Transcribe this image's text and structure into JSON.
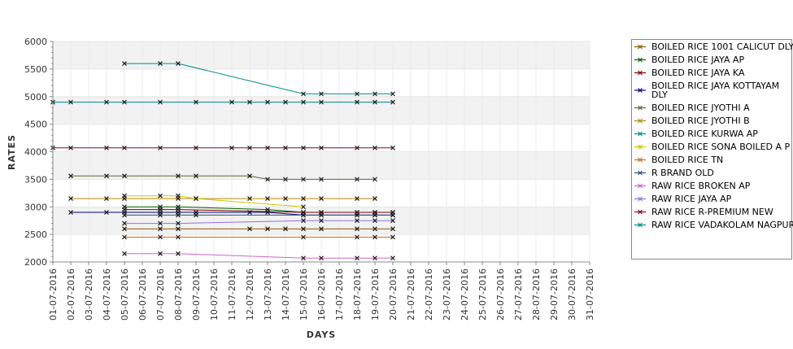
{
  "chart_data": {
    "type": "line",
    "xlabel": "DAYS",
    "ylabel": "RATES",
    "ylim": [
      2000,
      6000
    ],
    "yticks": [
      2000,
      2500,
      3000,
      3500,
      4000,
      4500,
      5000,
      5500,
      6000
    ],
    "grid": "alternating horizontal bands",
    "legend_position": "right",
    "categories": [
      "01-07-2016",
      "02-07-2016",
      "03-07-2016",
      "04-07-2016",
      "05-07-2016",
      "06-07-2016",
      "07-07-2016",
      "08-07-2016",
      "09-07-2016",
      "10-07-2016",
      "11-07-2016",
      "12-07-2016",
      "13-07-2016",
      "14-07-2016",
      "15-07-2016",
      "16-07-2016",
      "17-07-2016",
      "18-07-2016",
      "19-07-2016",
      "20-07-2016",
      "21-07-2016",
      "22-07-2016",
      "23-07-2016",
      "24-07-2016",
      "25-07-2016",
      "26-07-2016",
      "27-07-2016",
      "28-07-2016",
      "29-07-2016",
      "30-07-2016",
      "31-07-2016"
    ],
    "series": [
      {
        "name": "BOILED RICE 1001 CALICUT DLY",
        "color": "#8b5a00",
        "values": [
          null,
          null,
          null,
          null,
          2600,
          null,
          2600,
          2600,
          null,
          null,
          null,
          2600,
          2600,
          2600,
          2600,
          2600,
          null,
          2600,
          2600,
          2600,
          null,
          null,
          null,
          null,
          null,
          null,
          null,
          null,
          null,
          null,
          null
        ]
      },
      {
        "name": "BOILED RICE JAYA AP",
        "color": "#006400",
        "values": [
          null,
          null,
          null,
          null,
          3000,
          null,
          3000,
          3000,
          null,
          null,
          null,
          null,
          2950,
          null,
          2900,
          2900,
          null,
          2900,
          2900,
          2900,
          null,
          null,
          null,
          null,
          null,
          null,
          null,
          null,
          null,
          null,
          null
        ]
      },
      {
        "name": "BOILED RICE JAYA KA",
        "color": "#800000",
        "values": [
          null,
          null,
          null,
          null,
          2950,
          null,
          2950,
          2950,
          null,
          null,
          null,
          null,
          null,
          null,
          2900,
          2900,
          null,
          2900,
          2900,
          2900,
          null,
          null,
          null,
          null,
          null,
          null,
          null,
          null,
          null,
          null,
          null
        ]
      },
      {
        "name": "BOILED RICE JAYA KOTTAYAM DLY",
        "color": "#000080",
        "values": [
          null,
          2900,
          null,
          2900,
          2900,
          null,
          2900,
          2900,
          2900,
          null,
          null,
          2900,
          2900,
          null,
          2850,
          2850,
          null,
          2850,
          2850,
          2850,
          null,
          null,
          null,
          null,
          null,
          null,
          null,
          null,
          null,
          null,
          null
        ]
      },
      {
        "name": "BOILED RICE JYOTHI A",
        "color": "#556b2f",
        "values": [
          null,
          3560,
          null,
          3560,
          3560,
          null,
          null,
          3560,
          3560,
          null,
          null,
          3560,
          3500,
          3500,
          3500,
          3500,
          null,
          3500,
          3500,
          null,
          null,
          null,
          null,
          null,
          null,
          null,
          null,
          null,
          null,
          null,
          null
        ]
      },
      {
        "name": "BOILED RICE JYOTHI B",
        "color": "#b8860b",
        "values": [
          null,
          3150,
          null,
          3150,
          3150,
          null,
          null,
          3150,
          3150,
          null,
          null,
          3150,
          3150,
          3150,
          3150,
          3150,
          null,
          3150,
          3150,
          null,
          null,
          null,
          null,
          null,
          null,
          null,
          null,
          null,
          null,
          null,
          null
        ]
      },
      {
        "name": "BOILED RICE KURWA AP",
        "color": "#008b8b",
        "values": [
          null,
          null,
          null,
          null,
          5600,
          null,
          5600,
          5600,
          null,
          null,
          null,
          null,
          null,
          null,
          5050,
          5050,
          null,
          5050,
          5050,
          5050,
          null,
          null,
          null,
          null,
          null,
          null,
          null,
          null,
          null,
          null,
          null
        ]
      },
      {
        "name": "BOILED RICE SONA BOILED A P",
        "color": "#c8c800",
        "values": [
          null,
          null,
          null,
          null,
          3200,
          null,
          3200,
          3200,
          3150,
          null,
          null,
          null,
          null,
          null,
          3000,
          null,
          null,
          null,
          null,
          null,
          null,
          null,
          null,
          null,
          null,
          null,
          null,
          null,
          null,
          null,
          null
        ]
      },
      {
        "name": "BOILED RICE TN",
        "color": "#d2691e",
        "values": [
          null,
          null,
          null,
          null,
          2450,
          null,
          2450,
          2450,
          null,
          null,
          null,
          null,
          null,
          null,
          2450,
          null,
          null,
          2450,
          2450,
          2450,
          null,
          null,
          null,
          null,
          null,
          null,
          null,
          null,
          null,
          null,
          null
        ]
      },
      {
        "name": "R BRAND OLD",
        "color": "#2f4f7f",
        "values": [
          null,
          null,
          null,
          null,
          2850,
          null,
          2850,
          2850,
          2850,
          null,
          null,
          null,
          null,
          null,
          2850,
          2850,
          null,
          2850,
          2850,
          2850,
          null,
          null,
          null,
          null,
          null,
          null,
          null,
          null,
          null,
          null,
          null
        ]
      },
      {
        "name": "RAW RICE BROKEN AP",
        "color": "#cc66cc",
        "values": [
          null,
          null,
          null,
          null,
          2150,
          null,
          2150,
          2150,
          null,
          null,
          null,
          null,
          null,
          null,
          2070,
          2070,
          null,
          2070,
          2070,
          2070,
          null,
          null,
          null,
          null,
          null,
          null,
          null,
          null,
          null,
          null,
          null
        ]
      },
      {
        "name": "RAW RICE JAYA AP",
        "color": "#9370db",
        "values": [
          null,
          null,
          null,
          null,
          2700,
          null,
          2700,
          2700,
          null,
          null,
          null,
          null,
          null,
          null,
          2750,
          2750,
          null,
          2750,
          2750,
          2750,
          null,
          null,
          null,
          null,
          null,
          null,
          null,
          null,
          null,
          null,
          null
        ]
      },
      {
        "name": "RAW RICE R-PREMIUM NEW",
        "color": "#800040",
        "values": [
          4070,
          4070,
          null,
          4070,
          4070,
          null,
          4070,
          null,
          4070,
          null,
          4070,
          4070,
          4070,
          4070,
          4070,
          4070,
          null,
          4070,
          4070,
          4070,
          null,
          null,
          null,
          null,
          null,
          null,
          null,
          null,
          null,
          null,
          null
        ]
      },
      {
        "name": "RAW RICE VADAKOLAM NAGPUR",
        "color": "#008b8b",
        "values": [
          4900,
          4900,
          null,
          4900,
          4900,
          null,
          4900,
          null,
          4900,
          null,
          4900,
          4900,
          4900,
          4900,
          4900,
          4900,
          null,
          4900,
          4900,
          4900,
          null,
          null,
          null,
          null,
          null,
          null,
          null,
          null,
          null,
          null,
          null
        ]
      }
    ]
  }
}
